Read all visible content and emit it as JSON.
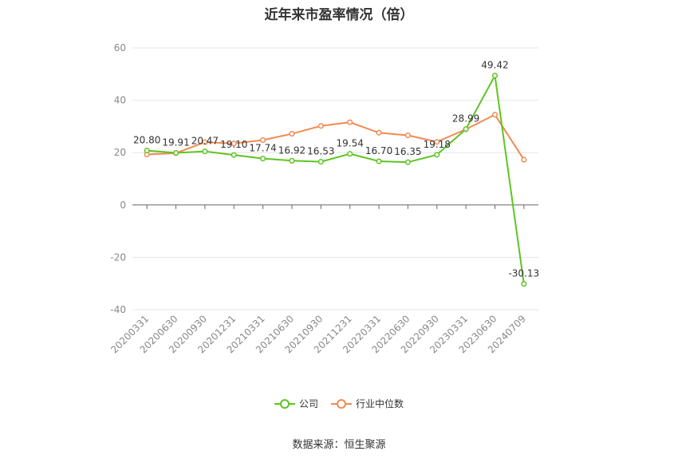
{
  "source_text": "数据来源：恒生聚源",
  "chart_data": {
    "type": "line",
    "title": "近年来市盈率情况（倍）",
    "categories": [
      "20200331",
      "20200630",
      "20200930",
      "20201231",
      "20210331",
      "20210630",
      "20210930",
      "20211231",
      "20220331",
      "20220630",
      "20220930",
      "20230331",
      "20230630",
      "20240709"
    ],
    "ylim": [
      -40,
      60
    ],
    "yticks": [
      -40,
      -20,
      0,
      20,
      40,
      60
    ],
    "grid": true,
    "legend_position": "bottom",
    "series": [
      {
        "name": "公司",
        "color": "#5ec421",
        "values": [
          20.8,
          19.91,
          20.47,
          19.1,
          17.74,
          16.92,
          16.53,
          19.54,
          16.7,
          16.35,
          19.18,
          28.99,
          49.42,
          -30.13
        ],
        "labels": [
          "20.80",
          "19.91",
          "20.47",
          "19.10",
          "17.74",
          "16.92",
          "16.53",
          "19.54",
          "16.70",
          "16.35",
          "19.18",
          "28.99",
          "49.42",
          "-30.13"
        ]
      },
      {
        "name": "行业中位数",
        "color": "#f08a52",
        "values": [
          19.3,
          19.8,
          24.0,
          23.5,
          24.8,
          27.2,
          30.2,
          31.6,
          27.6,
          26.6,
          24.1,
          28.9,
          34.5,
          17.3
        ]
      }
    ]
  }
}
